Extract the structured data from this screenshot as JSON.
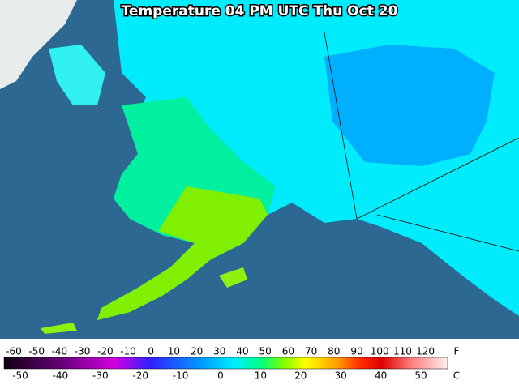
{
  "title": "Temperature 04 PM UTC Thu Oct 20",
  "legend": {
    "fahrenheit": {
      "unit": "F",
      "ticks": [
        -60,
        -50,
        -40,
        -30,
        -20,
        -10,
        0,
        10,
        20,
        30,
        40,
        50,
        60,
        70,
        80,
        90,
        100,
        110,
        120
      ]
    },
    "celsius": {
      "unit": "C",
      "ticks": [
        -50,
        -40,
        -30,
        -20,
        -10,
        0,
        10,
        20,
        30,
        40,
        50
      ]
    }
  }
}
